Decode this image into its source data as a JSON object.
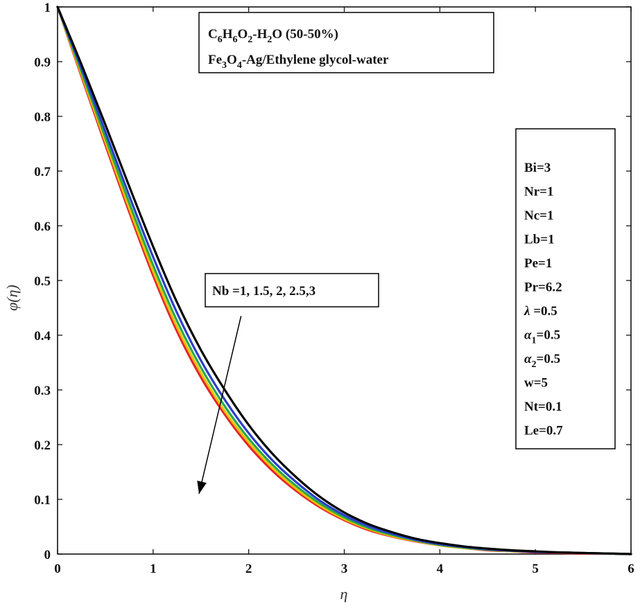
{
  "chart_data": {
    "type": "line",
    "xlabel": "η",
    "ylabel": "φ(η)",
    "xlim": [
      0,
      6
    ],
    "ylim": [
      0,
      1
    ],
    "xticks": [
      "0",
      "1",
      "2",
      "3",
      "4",
      "5",
      "6"
    ],
    "yticks": [
      "0",
      "0.1",
      "0.2",
      "0.3",
      "0.4",
      "0.5",
      "0.6",
      "0.7",
      "0.8",
      "0.9",
      "1"
    ],
    "grid": false,
    "x": [
      0,
      0.25,
      0.5,
      0.75,
      1,
      1.25,
      1.5,
      1.75,
      2,
      2.25,
      2.5,
      2.75,
      3,
      3.25,
      3.5,
      3.75,
      4,
      4.25,
      4.5,
      4.75,
      5,
      5.25,
      5.5,
      5.75,
      6
    ],
    "series": [
      {
        "name": "Nb=1",
        "color": "#000000",
        "values": [
          1,
          0.895,
          0.785,
          0.672,
          0.562,
          0.46,
          0.373,
          0.3,
          0.236,
          0.183,
          0.14,
          0.104,
          0.076,
          0.055,
          0.04,
          0.028,
          0.02,
          0.014,
          0.01,
          0.007,
          0.005,
          0.003,
          0.002,
          0.001,
          0
        ]
      },
      {
        "name": "Nb=1.5",
        "color": "#2b3fc9",
        "values": [
          1,
          0.888,
          0.772,
          0.655,
          0.543,
          0.441,
          0.354,
          0.282,
          0.221,
          0.171,
          0.131,
          0.097,
          0.071,
          0.051,
          0.037,
          0.026,
          0.018,
          0.013,
          0.009,
          0.006,
          0.004,
          0.003,
          0.002,
          0.001,
          0
        ]
      },
      {
        "name": "Nb=2",
        "color": "#2aa84a",
        "values": [
          1,
          0.882,
          0.762,
          0.642,
          0.528,
          0.426,
          0.341,
          0.27,
          0.211,
          0.163,
          0.124,
          0.092,
          0.067,
          0.048,
          0.035,
          0.025,
          0.017,
          0.012,
          0.008,
          0.006,
          0.004,
          0.003,
          0.002,
          0.001,
          0
        ]
      },
      {
        "name": "Nb=2.5",
        "color": "#e6c200",
        "values": [
          1,
          0.877,
          0.754,
          0.632,
          0.517,
          0.415,
          0.331,
          0.261,
          0.204,
          0.157,
          0.119,
          0.088,
          0.064,
          0.046,
          0.033,
          0.024,
          0.016,
          0.011,
          0.008,
          0.005,
          0.004,
          0.003,
          0.002,
          0.001,
          0
        ]
      },
      {
        "name": "Nb=3",
        "color": "#e8232a",
        "values": [
          1,
          0.873,
          0.748,
          0.625,
          0.509,
          0.407,
          0.323,
          0.255,
          0.198,
          0.152,
          0.115,
          0.085,
          0.062,
          0.044,
          0.032,
          0.023,
          0.016,
          0.011,
          0.007,
          0.005,
          0.003,
          0.002,
          0.001,
          0.001,
          0
        ]
      }
    ],
    "annotations": {
      "nb_label": "Nb =1, 1.5, 2, 2.5,3",
      "arrow": {
        "from": [
          1.92,
          0.435
        ],
        "to": [
          1.48,
          0.11
        ]
      }
    },
    "title_box": {
      "line1": [
        {
          "t": "C"
        },
        {
          "t": "6",
          "sub": true
        },
        {
          "t": "H"
        },
        {
          "t": "6",
          "sub": true
        },
        {
          "t": "O"
        },
        {
          "t": "2",
          "sub": true
        },
        {
          "t": "-H"
        },
        {
          "t": "2",
          "sub": true
        },
        {
          "t": "O (50-50%)"
        }
      ],
      "line2": [
        {
          "t": "Fe"
        },
        {
          "t": "3",
          "sub": true
        },
        {
          "t": "O"
        },
        {
          "t": "4",
          "sub": true
        },
        {
          "t": "-Ag/Ethylene glycol-water"
        }
      ]
    },
    "params": [
      [
        {
          "t": "Bi=3"
        }
      ],
      [
        {
          "t": "Nr=1"
        }
      ],
      [
        {
          "t": "Nc=1"
        }
      ],
      [
        {
          "t": "Lb=1"
        }
      ],
      [
        {
          "t": "Pe=1"
        }
      ],
      [
        {
          "t": "Pr=6.2"
        }
      ],
      [
        {
          "t": "λ",
          "italic": true
        },
        {
          "t": " =0.5"
        }
      ],
      [
        {
          "t": "α",
          "italic": true
        },
        {
          "t": "1",
          "sub": true
        },
        {
          "t": "=0.5"
        }
      ],
      [
        {
          "t": "α",
          "italic": true
        },
        {
          "t": "2",
          "sub": true
        },
        {
          "t": "=0.5"
        }
      ],
      [
        {
          "t": "w=5"
        }
      ],
      [
        {
          "t": "Nt=0.1"
        }
      ],
      [
        {
          "t": "Le=0.7"
        }
      ]
    ]
  }
}
